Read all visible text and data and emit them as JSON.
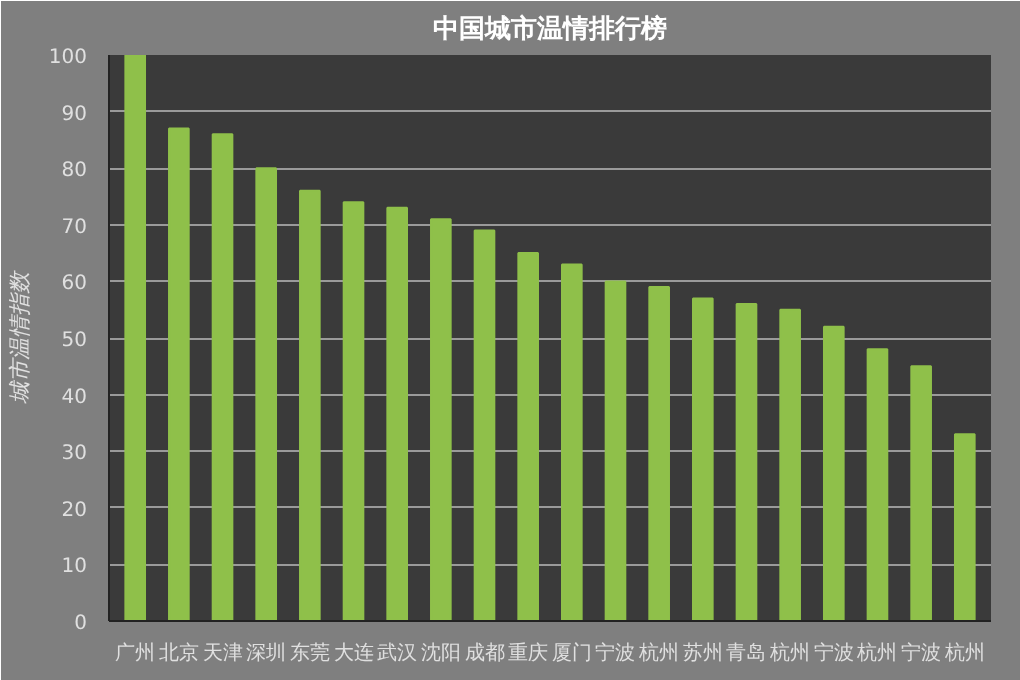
{
  "chart_data": {
    "type": "bar",
    "title": "中国城市温情排行榜",
    "ylabel": "城市温情指数",
    "categories": [
      "广州",
      "北京",
      "天津",
      "深圳",
      "东莞",
      "大连",
      "武汉",
      "沈阳",
      "成都",
      "重庆",
      "厦门",
      "宁波",
      "杭州",
      "苏州",
      "青岛",
      "杭州",
      "宁波",
      "杭州",
      "宁波",
      "杭州"
    ],
    "values": [
      100,
      87,
      86,
      80,
      76,
      74,
      73,
      71,
      69,
      65,
      63,
      60,
      59,
      57,
      56,
      55,
      52,
      48,
      45,
      33
    ],
    "color": "#8fc04a",
    "ylim": [
      0,
      100
    ],
    "yticks": [
      0,
      10,
      20,
      30,
      40,
      50,
      60,
      70,
      80,
      90,
      100
    ],
    "grid": "y"
  }
}
